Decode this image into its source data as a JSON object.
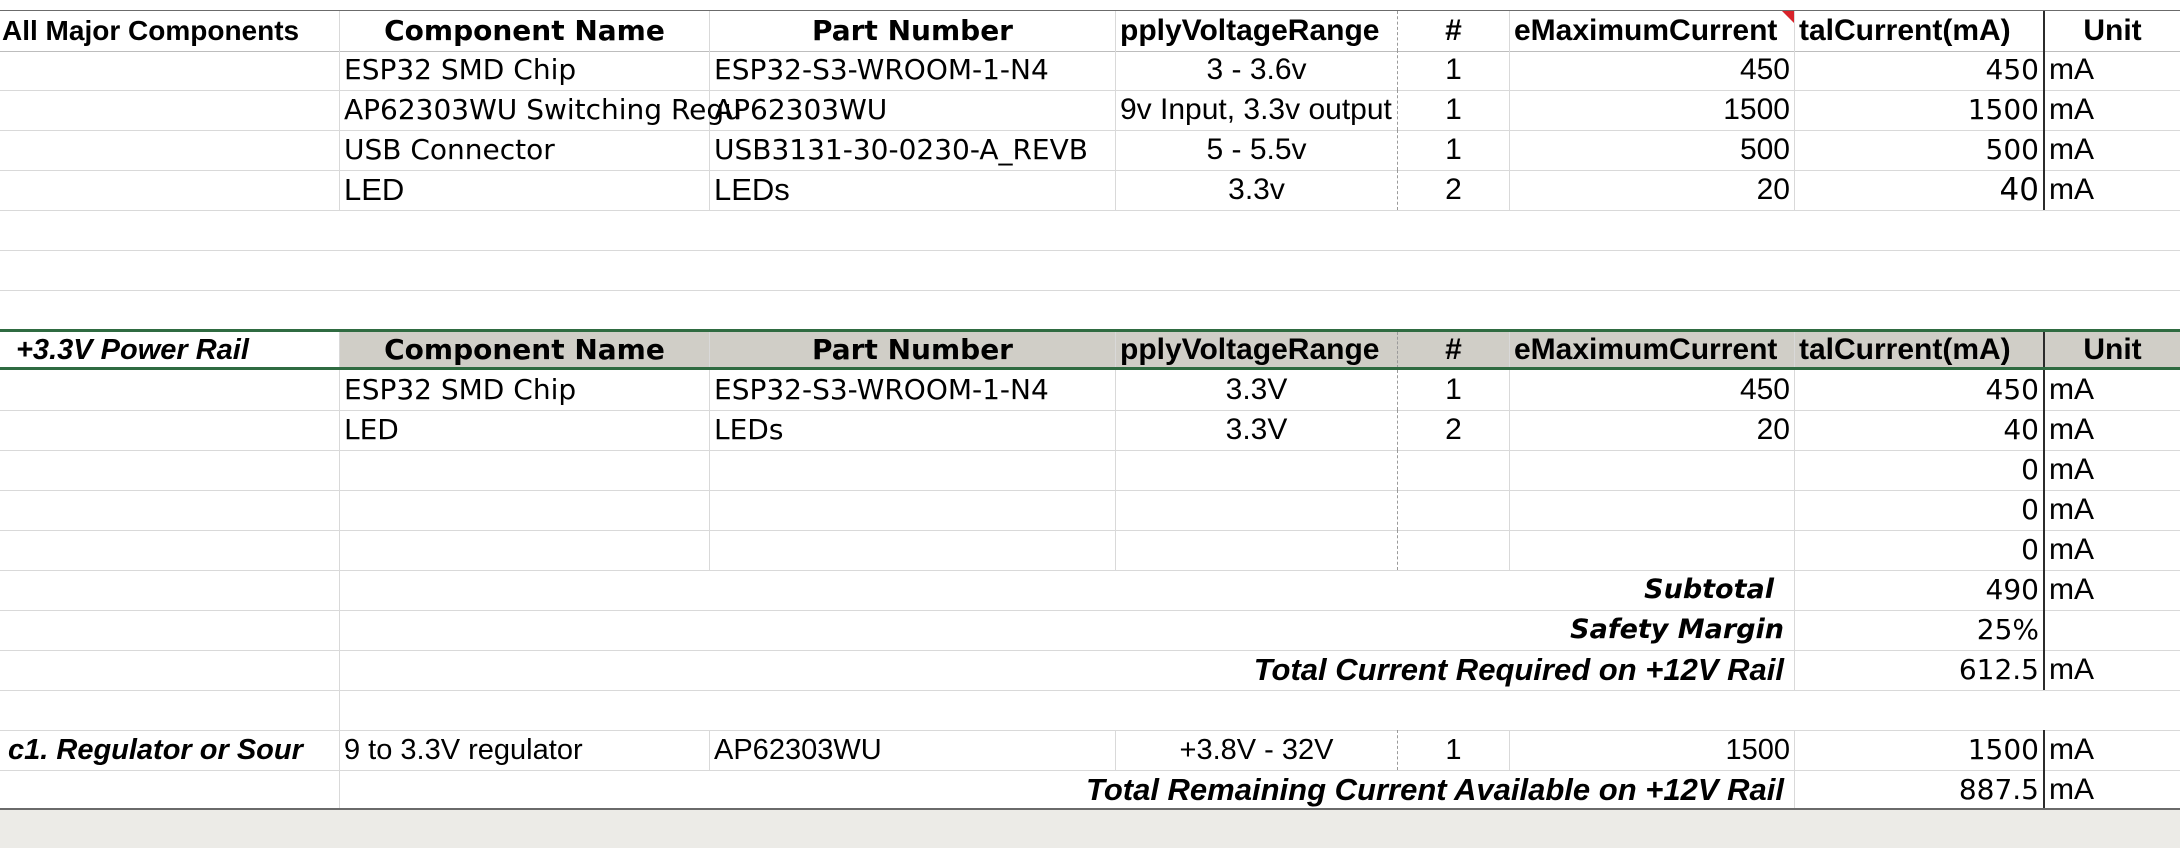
{
  "section1": {
    "title": "All Major Components",
    "headers": [
      "Component Name",
      "Part Number",
      "pplyVoltageRange",
      "#",
      "eMaximumCurrent",
      "talCurrent(mA)",
      "Unit"
    ],
    "rows": [
      {
        "name": "ESP32 SMD Chip",
        "part": "ESP32-S3-WROOM-1-N4",
        "voltage": "3 - 3.6v",
        "qty": "1",
        "maxcur": "450",
        "total": "450",
        "unit": "mA"
      },
      {
        "name": "AP62303WU Switching Regu",
        "part": "AP62303WU",
        "voltage": "9v Input, 3.3v output",
        "qty": "1",
        "maxcur": "1500",
        "total": "1500",
        "unit": "mA"
      },
      {
        "name": "USB Connector",
        "part": "USB3131-30-0230-A_REVB",
        "voltage": "5 - 5.5v",
        "qty": "1",
        "maxcur": "500",
        "total": "500",
        "unit": "mA"
      },
      {
        "name": "LED",
        "part": "LEDs",
        "voltage": "3.3v",
        "qty": "2",
        "maxcur": "20",
        "total": "40",
        "unit": "mA"
      }
    ]
  },
  "section2": {
    "title": "+3.3V Power Rail",
    "headers": [
      "Component Name",
      "Part Number",
      "pplyVoltageRange",
      "#",
      "eMaximumCurrent",
      "talCurrent(mA)",
      "Unit"
    ],
    "rows": [
      {
        "name": "ESP32 SMD Chip",
        "part": "ESP32-S3-WROOM-1-N4",
        "voltage": "3.3V",
        "qty": "1",
        "maxcur": "450",
        "total": "450",
        "unit": "mA"
      },
      {
        "name": "LED",
        "part": "LEDs",
        "voltage": "3.3V",
        "qty": "2",
        "maxcur": "20",
        "total": "40",
        "unit": "mA"
      },
      {
        "name": "",
        "part": "",
        "voltage": "",
        "qty": "",
        "maxcur": "",
        "total": "0",
        "unit": "mA"
      },
      {
        "name": "",
        "part": "",
        "voltage": "",
        "qty": "",
        "maxcur": "",
        "total": "0",
        "unit": "mA"
      },
      {
        "name": "",
        "part": "",
        "voltage": "",
        "qty": "",
        "maxcur": "",
        "total": "0",
        "unit": "mA"
      }
    ],
    "subtotal_label": "Subtotal",
    "subtotal": "490",
    "subtotal_unit": "mA",
    "margin_label": "Safety Margin",
    "margin": "25%",
    "required_label": "Total Current Required on +12V Rail",
    "required": "612.5",
    "required_unit": "mA"
  },
  "regulator": {
    "label": "c1. Regulator or Sour",
    "name": "9 to 3.3V regulator",
    "part": "AP62303WU",
    "voltage": "+3.8V - 32V",
    "qty": "1",
    "maxcur": "1500",
    "total": "1500",
    "unit": "mA"
  },
  "remaining": {
    "label": "Total Remaining Current Available on +12V Rail",
    "value": "887.5",
    "unit": "mA"
  }
}
